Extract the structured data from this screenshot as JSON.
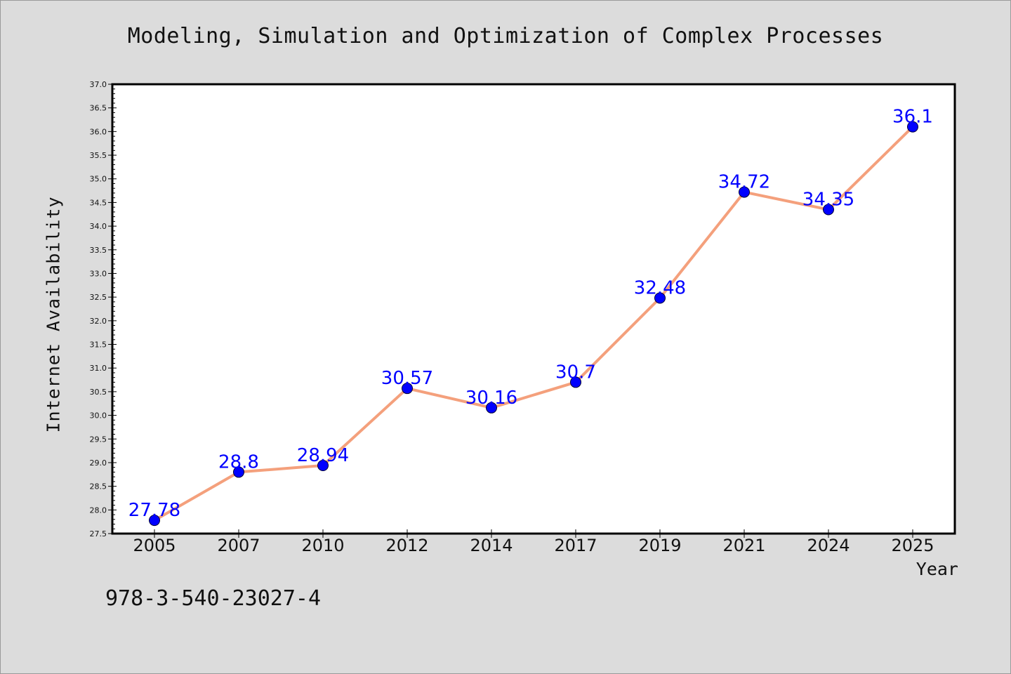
{
  "chart_data": {
    "type": "line",
    "title": "Modeling, Simulation and Optimization of Complex Processes",
    "xlabel": "Year",
    "ylabel": "Internet Availability",
    "categories": [
      "2005",
      "2007",
      "2010",
      "2012",
      "2014",
      "2017",
      "2019",
      "2021",
      "2024",
      "2025"
    ],
    "series": [
      {
        "values": [
          27.78,
          28.8,
          28.94,
          30.57,
          30.16,
          30.7,
          32.48,
          34.72,
          34.35,
          36.1
        ],
        "labels": [
          "27.78",
          "28.8",
          "28.94",
          "30.57",
          "30.16",
          "30.7",
          "32.48",
          "34.72",
          "34.35",
          "36.1"
        ],
        "line_color": "#f4a07c",
        "marker_color": "#0000ff"
      }
    ],
    "ylim": [
      27.5,
      37.0
    ],
    "yticks": [
      "27.5",
      "28.0",
      "28.5",
      "29.0",
      "29.5",
      "30.0",
      "30.5",
      "31.0",
      "31.5",
      "32.0",
      "32.5",
      "33.0",
      "33.5",
      "34.0",
      "34.5",
      "35.0",
      "35.5",
      "36.0",
      "36.5",
      "37.0"
    ],
    "grid": false,
    "legend": "none"
  },
  "footer_text": "978-3-540-23027-4",
  "colors": {
    "background": "#dcdcdc",
    "plot_background": "#ffffff",
    "line": "#f4a07c",
    "marker": "#0000ff",
    "data_label": "#0000ff"
  }
}
